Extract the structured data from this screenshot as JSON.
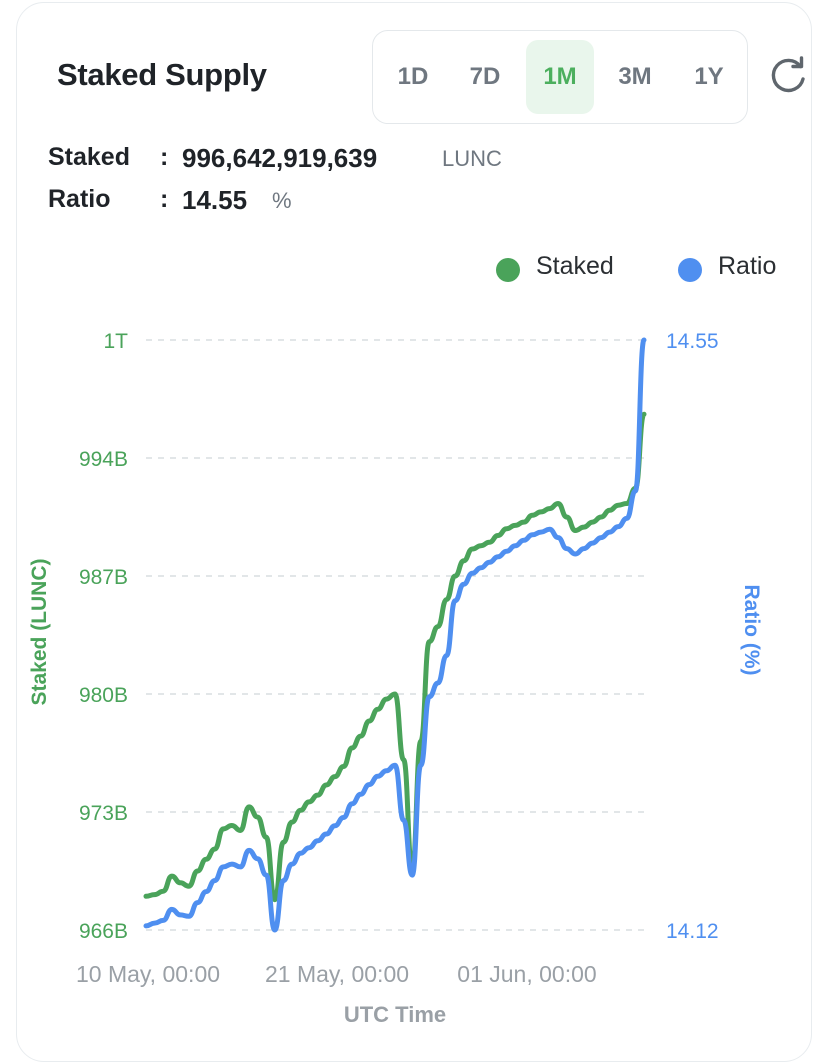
{
  "header": {
    "title": "Staked Supply"
  },
  "range": {
    "options": [
      "1D",
      "7D",
      "1M",
      "3M",
      "1Y"
    ],
    "selected": "1M"
  },
  "stats": {
    "staked_label": "Staked",
    "staked_value": "996,642,919,639",
    "staked_unit": "LUNC",
    "ratio_label": "Ratio",
    "ratio_value": "14.55",
    "ratio_unit": "%"
  },
  "legend": {
    "staked": "Staked",
    "ratio": "Ratio"
  },
  "colors": {
    "staked": "#4aa35a",
    "ratio": "#4f8ff0",
    "active_bg": "#e9f6ec",
    "grid": "#d9dde1"
  },
  "icons": {
    "refresh": "refresh-icon"
  },
  "chart_data": {
    "type": "line",
    "title": "",
    "xlabel": "UTC Time",
    "ylabel_left": "Staked (LUNC)",
    "ylabel_right": "Ratio (%)",
    "x_tick_labels": [
      "10 May, 00:00",
      "21 May, 00:00",
      "01 Jun, 00:00"
    ],
    "left_ticks": [
      {
        "label": "966B",
        "value": 966
      },
      {
        "label": "973B",
        "value": 973
      },
      {
        "label": "980B",
        "value": 980
      },
      {
        "label": "987B",
        "value": 987
      },
      {
        "label": "994B",
        "value": 994
      },
      {
        "label": "1T",
        "value": 1001
      }
    ],
    "right_ticks": [
      {
        "label": "14.12",
        "value": 14.12
      },
      {
        "label": "14.55",
        "value": 14.55
      }
    ],
    "left_ylim": [
      966,
      1001
    ],
    "right_ylim": [
      14.12,
      14.55
    ],
    "x_range_days": [
      0,
      29
    ],
    "grid": true,
    "legend_position": "top-right",
    "x": [
      0,
      0.5,
      1,
      1.5,
      2,
      2.5,
      3,
      3.5,
      4,
      4.5,
      5,
      5.5,
      6,
      6.5,
      7,
      7.5,
      8,
      8.5,
      9,
      9.5,
      10,
      10.5,
      11,
      11.5,
      12,
      12.5,
      13,
      13.5,
      14,
      14.5,
      15,
      15.5,
      16,
      16.5,
      17,
      17.5,
      18,
      18.5,
      19,
      19.5,
      20,
      20.5,
      21,
      21.5,
      22,
      22.5,
      23,
      23.5,
      24,
      24.5,
      25,
      25.5,
      26,
      26.5,
      27,
      27.5,
      28,
      28.5,
      29
    ],
    "series": [
      {
        "name": "Staked",
        "axis": "left",
        "unit": "B LUNC",
        "values": [
          968.0,
          968.1,
          968.3,
          969.2,
          968.8,
          968.6,
          969.5,
          970.2,
          970.8,
          972.0,
          972.2,
          971.9,
          973.3,
          972.7,
          971.5,
          967.8,
          971.2,
          972.4,
          973.1,
          973.6,
          974.0,
          974.6,
          975.1,
          975.7,
          976.8,
          977.5,
          978.4,
          979.1,
          979.7,
          980.0,
          976.1,
          969.6,
          977.2,
          983.1,
          984.0,
          985.6,
          987.0,
          987.9,
          988.6,
          988.8,
          989.0,
          989.4,
          989.8,
          990.0,
          990.2,
          990.6,
          990.8,
          991.0,
          991.3,
          990.5,
          989.7,
          989.9,
          990.2,
          990.5,
          990.9,
          991.2,
          991.3,
          992.2,
          996.6
        ]
      },
      {
        "name": "Ratio",
        "axis": "right",
        "unit": "%",
        "values": [
          14.123,
          14.125,
          14.127,
          14.135,
          14.131,
          14.13,
          14.14,
          14.148,
          14.156,
          14.166,
          14.168,
          14.166,
          14.178,
          14.172,
          14.16,
          14.12,
          14.156,
          14.168,
          14.176,
          14.18,
          14.185,
          14.19,
          14.196,
          14.202,
          14.212,
          14.219,
          14.226,
          14.232,
          14.236,
          14.24,
          14.2,
          14.16,
          14.24,
          14.29,
          14.3,
          14.32,
          14.36,
          14.372,
          14.38,
          14.384,
          14.388,
          14.392,
          14.396,
          14.4,
          14.404,
          14.408,
          14.41,
          14.412,
          14.406,
          14.398,
          14.394,
          14.398,
          14.402,
          14.406,
          14.41,
          14.414,
          14.42,
          14.44,
          14.55
        ]
      }
    ]
  }
}
